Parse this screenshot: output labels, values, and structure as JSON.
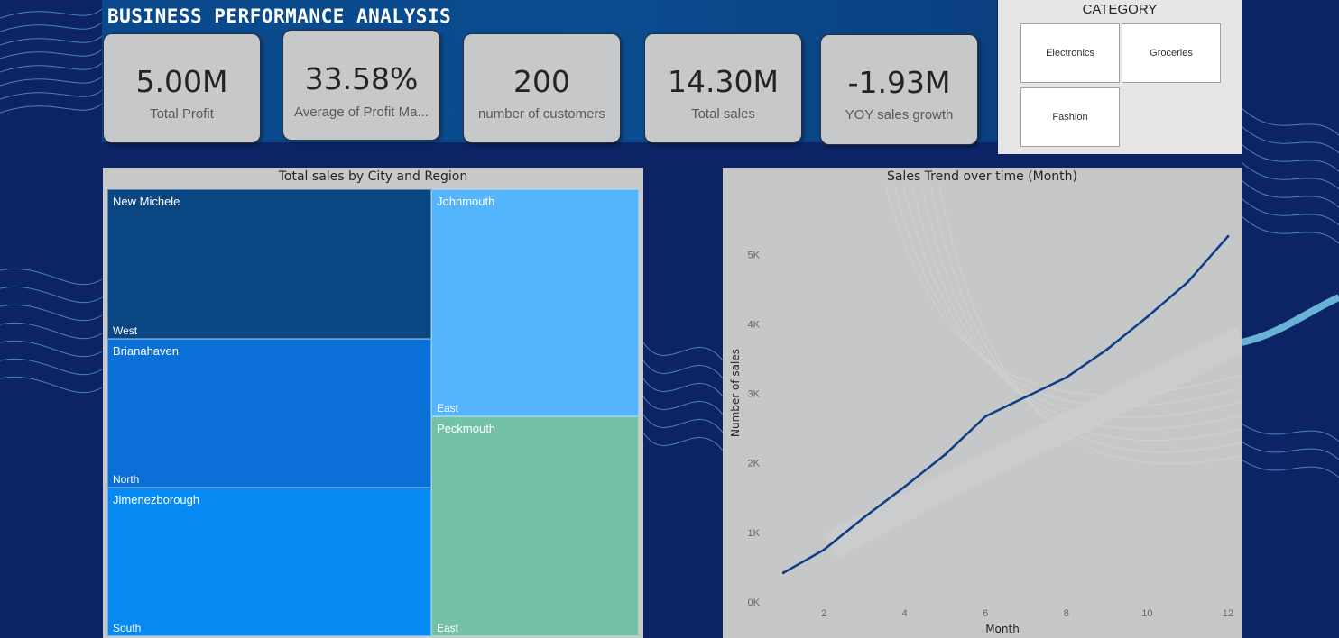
{
  "title": "BUSINESS PERFORMANCE ANALYSIS",
  "kpis": [
    {
      "value": "5.00M",
      "label": "Total Profit"
    },
    {
      "value": "33.58%",
      "label": "Average of Profit Ma..."
    },
    {
      "value": "200",
      "label": "number of customers"
    },
    {
      "value": "14.30M",
      "label": "Total sales"
    },
    {
      "value": "-1.93M",
      "label": "YOY sales growth"
    }
  ],
  "slicer": {
    "title": "CATEGORY",
    "options": [
      "Electronics",
      "Groceries",
      "Fashion"
    ]
  },
  "colors": {
    "page_bg": "#0c2466",
    "header_band": "#0a4a8c",
    "card_bg": "#c7c8ca",
    "line": "#0d3f86",
    "tile_west": "#0a4681",
    "tile_north": "#0a6fd6",
    "tile_south": "#0789f4",
    "tile_east_john": "#54b5fc",
    "tile_east_peck": "#73c1a9"
  },
  "treemap": {
    "title": "Total sales by City and Region",
    "tiles": [
      {
        "city": "New Michele",
        "region": "West",
        "color": "#0a4681"
      },
      {
        "city": "Brianahaven",
        "region": "North",
        "color": "#0a6fd6"
      },
      {
        "city": "Jimenezborough",
        "region": "South",
        "color": "#0789f4"
      },
      {
        "city": "Johnmouth",
        "region": "East",
        "color": "#54b5fc"
      },
      {
        "city": "Peckmouth",
        "region": "East",
        "color": "#73c1a9"
      }
    ]
  },
  "chart_data": {
    "type": "line",
    "title": "Sales Trend over time (Month)",
    "xlabel": "Month",
    "ylabel": "Number of sales",
    "x": [
      1,
      2,
      3,
      4,
      5,
      6,
      7,
      8,
      9,
      10,
      11,
      12
    ],
    "series": [
      {
        "values": [
          420,
          750,
          1220,
          1660,
          2120,
          2670,
          2950,
          3230,
          3630,
          4100,
          4600,
          5260
        ]
      }
    ],
    "xticks": [
      2,
      4,
      6,
      8,
      10,
      12
    ],
    "yticks": [
      0,
      1000,
      2000,
      3000,
      4000,
      5000
    ],
    "ytick_labels": [
      "0K",
      "1K",
      "2K",
      "3K",
      "4K",
      "5K"
    ],
    "xlim": [
      0.5,
      12
    ],
    "ylim": [
      0,
      5600
    ],
    "grid": false,
    "color": "#0d3f86"
  }
}
